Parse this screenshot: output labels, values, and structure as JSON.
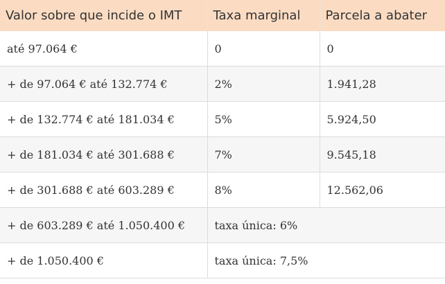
{
  "table": {
    "headers": [
      "Valor sobre que incide o IMT",
      "Taxa marginal",
      "Parcela a abater"
    ],
    "rows": [
      [
        "até 97.064 €",
        "0",
        "0"
      ],
      [
        "+ de 97.064 € até 132.774 €",
        "2%",
        "1.941,28"
      ],
      [
        "+ de 132.774 € até 181.034 €",
        "5%",
        "5.924,50"
      ],
      [
        "+ de 181.034 € até 301.688 €",
        "7%",
        "9.545,18"
      ],
      [
        "+ de 301.688 € até 603.289 €",
        "8%",
        "12.562,06"
      ],
      [
        "+ de 603.289 € até 1.050.400 €",
        "taxa única: 6%"
      ],
      [
        "+ de 1.050.400 €",
        "taxa única: 7,5%"
      ]
    ]
  },
  "colors": {
    "header_background": "#fbdcc3",
    "stripe_background": "#f6f6f6",
    "border": "#dcdcdc",
    "text": "#333333"
  }
}
